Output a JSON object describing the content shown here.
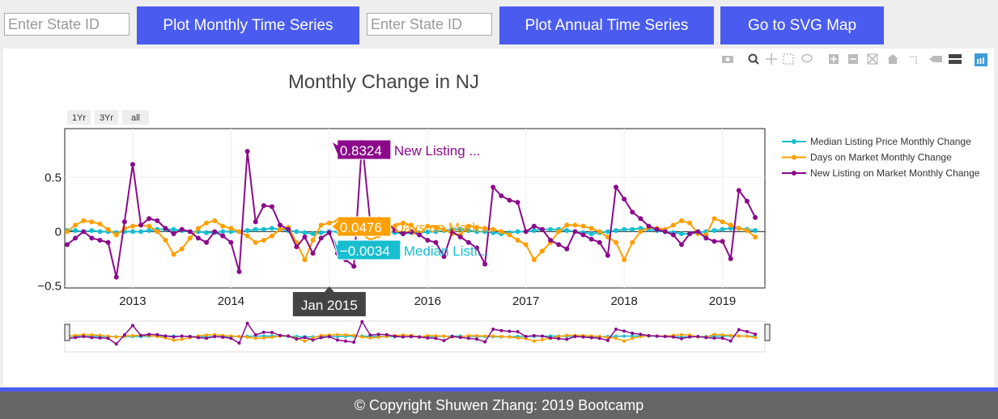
{
  "controls": {
    "monthly_input_placeholder": "Enter State ID",
    "monthly_button_label": "Plot Monthly Time Series",
    "annual_input_placeholder": "Enter State ID",
    "annual_button_label": "Plot Annual Time Series",
    "map_button_label": "Go to SVG Map"
  },
  "range_buttons": [
    "1Yr",
    "3Yr",
    "all"
  ],
  "modebar_icons": [
    "camera-icon",
    "zoom-icon",
    "pan-icon",
    "box-select-icon",
    "lasso-icon",
    "zoom-in-icon",
    "zoom-out-icon",
    "autoscale-icon",
    "reset-axes-icon",
    "spike-lines-icon",
    "hover-closest-icon",
    "hover-compare-icon",
    "plotly-logo-icon"
  ],
  "hover": {
    "x_label": "Jan 2015",
    "labels": [
      {
        "value": "0.8324",
        "name": "New Listing ..."
      },
      {
        "value": "0.0476",
        "name": "Days on Mark..."
      },
      {
        "value": "−0.0034",
        "name": "Median Listi..."
      }
    ]
  },
  "footer": {
    "text": "© Copyright Shuwen Zhang: 2019 Bootcamp"
  },
  "chart_data": {
    "type": "line",
    "title": "Monthly Change in NJ",
    "xlabel": "",
    "ylabel": "",
    "start": "2012-05",
    "ylim": [
      -0.52,
      0.95
    ],
    "xticks": [
      "2013",
      "2014",
      "2015",
      "2016",
      "2017",
      "2018",
      "2019"
    ],
    "xtick_labels_visible": [
      "2013",
      "2014",
      "",
      "2016",
      "2017",
      "2018",
      "2019"
    ],
    "yticks": [
      0.5,
      0,
      -0.5
    ],
    "ytick_labels": [
      "0.5",
      "0",
      "−0.5"
    ],
    "grid": true,
    "legend_placement": "right",
    "colors": [
      "#17becf",
      "#ff9f00",
      "#8b0a8b"
    ],
    "series": [
      {
        "name": "Median Listing Price Monthly Change",
        "values": [
          0.01,
          0.01,
          0.0,
          0.01,
          0.0,
          0.0,
          -0.01,
          0.0,
          0.0,
          0.0,
          0.01,
          0.02,
          0.02,
          0.02,
          0.01,
          0.0,
          0.0,
          -0.01,
          -0.01,
          0.0,
          0.0,
          0.0,
          0.01,
          0.02,
          0.02,
          0.03,
          0.02,
          0.01,
          0.0,
          -0.01,
          -0.02,
          -0.01,
          0.0,
          0.0,
          0.01,
          0.02,
          0.02,
          0.01,
          0.0,
          0.0,
          -0.01,
          -0.02,
          -0.01,
          -0.01,
          -0.003,
          0.0,
          0.01,
          0.02,
          0.02,
          0.01,
          0.0,
          0.0,
          -0.01,
          -0.02,
          -0.01,
          0.0,
          0.0,
          0.01,
          0.02,
          0.02,
          0.02,
          0.01,
          0.0,
          -0.01,
          -0.02,
          -0.01,
          0.0,
          0.01,
          0.02,
          0.02,
          0.03,
          0.02,
          0.01,
          0.0,
          -0.01,
          -0.02,
          -0.02,
          -0.01,
          0.0,
          0.01,
          0.02,
          0.03,
          0.03,
          0.02,
          0.01,
          0.0,
          -0.01,
          -0.02,
          -0.01,
          0.0,
          0.01,
          0.02,
          0.03,
          0.03,
          0.02,
          0.02,
          0.0,
          -0.01,
          -0.02,
          -0.01,
          0.0,
          0.01,
          0.02,
          0.03,
          0.03,
          0.02,
          0.02,
          0.0,
          -0.01,
          -0.01,
          0.0,
          0.02,
          0.03,
          0.03,
          0.03,
          0.02,
          0.02,
          0.01,
          0.0,
          -0.01,
          0.0,
          0.02,
          0.03,
          0.03,
          0.03
        ]
      },
      {
        "name": "Days on Market Monthly Change",
        "values": [
          0.0,
          0.06,
          0.1,
          0.09,
          0.07,
          0.02,
          -0.03,
          0.03,
          0.05,
          0.06,
          0.05,
          0.0,
          -0.08,
          -0.21,
          -0.16,
          -0.06,
          0.03,
          0.08,
          0.1,
          0.05,
          0.03,
          0.0,
          -0.04,
          -0.1,
          -0.08,
          -0.04,
          0.02,
          0.04,
          -0.1,
          -0.26,
          -0.08,
          0.06,
          0.08,
          0.1,
          0.09,
          0.06,
          -0.02,
          -0.08,
          -0.04,
          0.01,
          0.05,
          0.08,
          0.06,
          -0.02,
          0.05,
          0.04,
          0.02,
          -0.02,
          -0.03,
          0.05,
          0.04,
          0.03,
          0.02,
          0.0,
          -0.03,
          -0.08,
          -0.12,
          -0.26,
          -0.18,
          -0.1,
          0.0,
          0.06,
          0.06,
          0.05,
          0.03,
          0.0,
          -0.05,
          -0.1,
          -0.26,
          -0.1,
          0.0,
          0.04,
          0.03,
          0.02,
          0.06,
          0.1,
          0.08,
          -0.02,
          -0.03,
          0.12,
          0.09,
          0.06,
          0.03,
          0.01,
          -0.05,
          -0.08,
          -0.12,
          -0.26,
          -0.1,
          0.0,
          0.04,
          0.08,
          0.1,
          0.08,
          0.05,
          0.0,
          -0.08,
          -0.24,
          -0.08,
          0.05,
          0.08,
          0.06,
          0.04,
          0.03,
          0.02,
          -0.05,
          -0.08,
          -0.12,
          -0.24,
          -0.1,
          0.0,
          0.04,
          0.08,
          0.09,
          0.07,
          0.03,
          0.0,
          -0.04,
          0.02,
          0.16,
          0.06,
          -0.02,
          -0.21,
          -0.1
        ]
      },
      {
        "name": "New Listing on Market Monthly Change",
        "values": [
          -0.12,
          -0.06,
          0.0,
          -0.06,
          -0.08,
          -0.1,
          -0.42,
          0.09,
          0.62,
          0.06,
          0.12,
          0.1,
          0.03,
          -0.02,
          0.02,
          0.0,
          -0.06,
          -0.1,
          0.0,
          -0.04,
          -0.1,
          -0.37,
          0.74,
          0.09,
          0.24,
          0.23,
          0.06,
          0.02,
          -0.14,
          -0.05,
          -0.2,
          -0.06,
          -0.01,
          -0.2,
          -0.26,
          -0.32,
          0.83,
          0.08,
          0.12,
          0.1,
          0.01,
          -0.02,
          0.0,
          -0.03,
          -0.08,
          -0.1,
          -0.23,
          0.0,
          -0.05,
          -0.1,
          -0.15,
          -0.3,
          0.41,
          0.33,
          0.29,
          0.27,
          0.0,
          0.05,
          0.02,
          -0.08,
          -0.12,
          -0.16,
          0.0,
          -0.03,
          -0.07,
          -0.1,
          -0.22,
          0.41,
          0.3,
          0.18,
          0.12,
          0.05,
          0.02,
          0.0,
          -0.03,
          -0.12,
          -0.02,
          0.0,
          -0.06,
          -0.09,
          -0.09,
          -0.25,
          0.38,
          0.28,
          0.13,
          0.06,
          0.1,
          0.06,
          0.03,
          -0.1,
          -0.06,
          -0.03,
          -0.04,
          -0.07,
          -0.1,
          -0.1,
          -0.17,
          0.37,
          0.3,
          0.22,
          0.12,
          0.05,
          -0.02,
          0.03,
          0.0,
          -0.05,
          -0.08,
          -0.02,
          -0.13,
          -0.18,
          -0.22,
          0.28,
          0.35,
          0.18,
          0.12,
          0.05,
          0.03,
          -0.03,
          -0.06,
          -0.1,
          -0.2,
          -0.25,
          0.53,
          0.06,
          0.23,
          0.13
        ]
      }
    ]
  }
}
